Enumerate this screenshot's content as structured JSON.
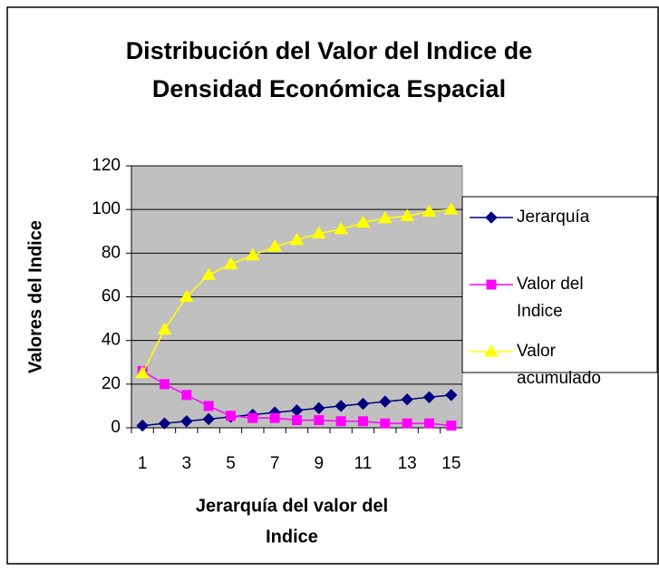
{
  "chart_data": {
    "type": "line",
    "title": [
      "Distribución del Valor del Indice de",
      "Densidad Económica Espacial"
    ],
    "y_label": "Valores del Indice",
    "x_label": [
      "Jerarquía del valor del",
      "Indice"
    ],
    "categories": [
      "1",
      null,
      "3",
      null,
      "5",
      null,
      "7",
      null,
      "9",
      null,
      "11",
      null,
      "13",
      null,
      "15"
    ],
    "series": [
      {
        "name": "Jerarquía",
        "color": "#000080",
        "marker": "diamond",
        "values": [
          1,
          2,
          3,
          4,
          5,
          6,
          7,
          8,
          9,
          10,
          11,
          12,
          13,
          14,
          15
        ]
      },
      {
        "name": "Valor del Indice",
        "color": "#FF00FF",
        "marker": "square",
        "values": [
          26,
          20,
          15,
          10,
          5.5,
          4.5,
          4.5,
          3.5,
          3.5,
          3,
          3,
          2,
          2,
          2,
          1
        ]
      },
      {
        "name": "Valor acumulado",
        "color": "#FFFF00",
        "marker": "triangle",
        "values": [
          25,
          45,
          60,
          70,
          75,
          79,
          83,
          86,
          89,
          91,
          94,
          96,
          97,
          99,
          100
        ]
      }
    ],
    "ylim": [
      0,
      120
    ],
    "yticks": [
      0,
      20,
      40,
      60,
      80,
      100,
      120
    ],
    "grid": true,
    "plot_background": "#C0C0C0",
    "legend": "right"
  }
}
